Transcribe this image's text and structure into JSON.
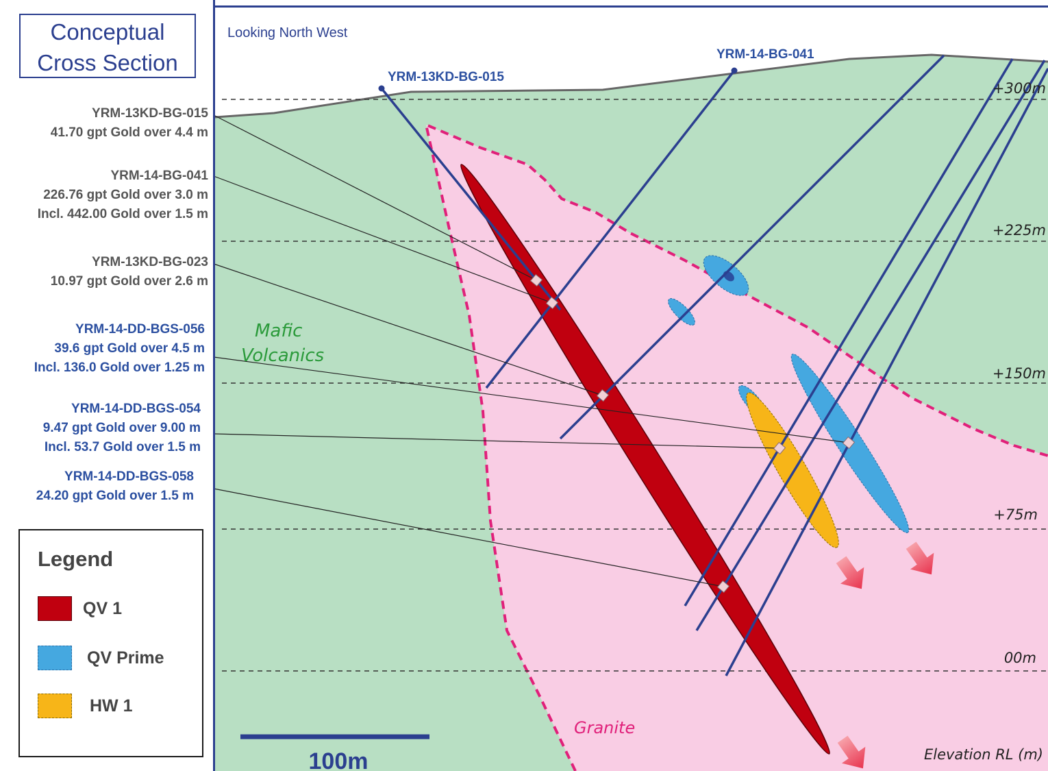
{
  "title": {
    "line1": "Conceptual",
    "line2": "Cross Section"
  },
  "view_label": "Looking North West",
  "drillholes": {
    "hole1": "YRM-13KD-BG-015",
    "hole2": "YRM-14-BG-041"
  },
  "elevations": [
    "+300m",
    "+225m",
    "+150m",
    "+75m",
    "00m"
  ],
  "elevation_axis_label": "Elevation RL (m)",
  "rock_labels": {
    "mafic_line1": "Mafic",
    "mafic_line2": "Volcanics",
    "granite": "Granite"
  },
  "scale_bar": {
    "label": "100m"
  },
  "intercepts": [
    {
      "hole": "YRM-13KD-BG-015",
      "line2": "41.70 gpt Gold over 4.4 m",
      "line3": ""
    },
    {
      "hole": "YRM-14-BG-041",
      "line2": "226.76 gpt Gold over 3.0 m",
      "line3": "Incl. 442.00 Gold over 1.5 m"
    },
    {
      "hole": "YRM-13KD-BG-023",
      "line2": "10.97 gpt Gold over 2.6 m",
      "line3": ""
    },
    {
      "hole": "YRM-14-DD-BGS-056",
      "line2": "39.6 gpt Gold over 4.5 m",
      "line3": "Incl. 136.0 Gold over 1.25 m"
    },
    {
      "hole": "YRM-14-DD-BGS-054",
      "line2": "9.47 gpt Gold over 9.00 m",
      "line3": "Incl. 53.7 Gold over 1.5 m"
    },
    {
      "hole": "YRM-14-DD-BGS-058",
      "line2": "24.20 gpt Gold over 1.5 m",
      "line3": ""
    }
  ],
  "legend": {
    "title": "Legend",
    "items": [
      {
        "label": "QV 1",
        "color": "#c0000f"
      },
      {
        "label": "QV Prime",
        "color": "#45a8e0"
      },
      {
        "label": "HW 1",
        "color": "#f7b518"
      }
    ]
  },
  "colors": {
    "mafic": "#b8dfc3",
    "granite": "#f9cde4",
    "granite_contact": "#e0207a",
    "drillhole": "#2b3f8f",
    "qv1": "#c0000f",
    "qv_prime": "#45a8e0",
    "hw1": "#f7b518",
    "arrow": "#e8344f"
  }
}
